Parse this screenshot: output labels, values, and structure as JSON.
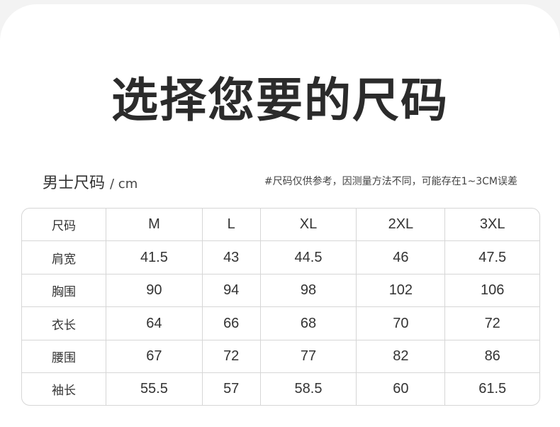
{
  "title": "选择您要的尺码",
  "subtitle": {
    "label": "男士尺码",
    "unit": "/ cm"
  },
  "note": "#尺码仅供参考，因测量方法不同，可能存在1~3CM误差",
  "table": {
    "header": [
      "尺码",
      "M",
      "L",
      "XL",
      "2XL",
      "3XL"
    ],
    "rows": [
      [
        "肩宽",
        "41.5",
        "43",
        "44.5",
        "46",
        "47.5"
      ],
      [
        "胸围",
        "90",
        "94",
        "98",
        "102",
        "106"
      ],
      [
        "衣长",
        "64",
        "66",
        "68",
        "70",
        "72"
      ],
      [
        "腰围",
        "67",
        "72",
        "77",
        "82",
        "86"
      ],
      [
        "袖长",
        "55.5",
        "57",
        "58.5",
        "60",
        "61.5"
      ]
    ]
  }
}
